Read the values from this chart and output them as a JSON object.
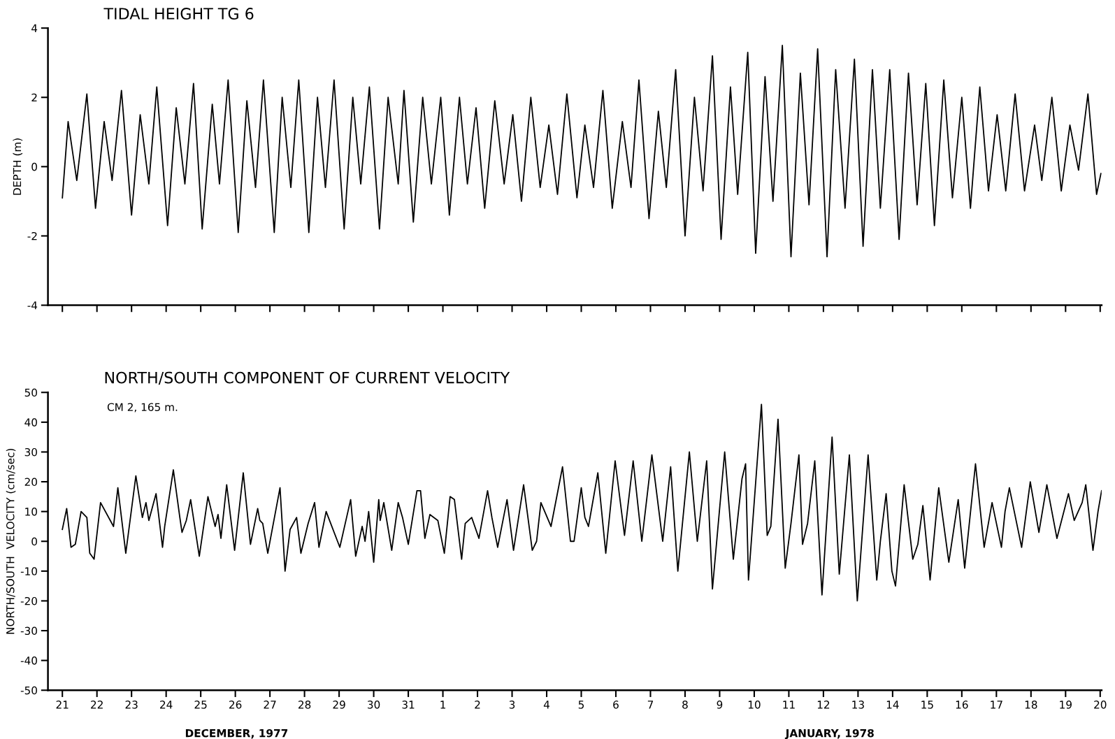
{
  "chart_data": [
    {
      "type": "line",
      "title": "TIDAL HEIGHT TG 6",
      "ylabel": "DEPTH (m)",
      "xlim": [
        "1977-12-20T14:00",
        "1978-01-20T01:00"
      ],
      "ylim": [
        -4,
        4
      ],
      "yticks": [
        -4,
        -2,
        0,
        2,
        4
      ],
      "xticks": [
        {
          "value": "1977-12-21",
          "label": null
        },
        {
          "value": "1977-12-22",
          "label": null
        },
        {
          "value": "1977-12-23",
          "label": null
        },
        {
          "value": "1977-12-24",
          "label": null
        },
        {
          "value": "1977-12-25",
          "label": null
        },
        {
          "value": "1977-12-26",
          "label": null
        },
        {
          "value": "1977-12-27",
          "label": null
        },
        {
          "value": "1977-12-28",
          "label": null
        },
        {
          "value": "1977-12-29",
          "label": null
        },
        {
          "value": "1977-12-30",
          "label": null
        },
        {
          "value": "1977-12-31",
          "label": null
        },
        {
          "value": "1978-01-01",
          "label": null
        },
        {
          "value": "1978-01-02",
          "label": null
        },
        {
          "value": "1978-01-03",
          "label": null
        },
        {
          "value": "1978-01-04",
          "label": null
        },
        {
          "value": "1978-01-05",
          "label": null
        },
        {
          "value": "1978-01-06",
          "label": null
        },
        {
          "value": "1978-01-07",
          "label": null
        },
        {
          "value": "1978-01-08",
          "label": null
        },
        {
          "value": "1978-01-09",
          "label": null
        },
        {
          "value": "1978-01-10",
          "label": null
        },
        {
          "value": "1978-01-11",
          "label": null
        },
        {
          "value": "1978-01-12",
          "label": null
        },
        {
          "value": "1978-01-13",
          "label": null
        },
        {
          "value": "1978-01-14",
          "label": null
        },
        {
          "value": "1978-01-15",
          "label": null
        },
        {
          "value": "1978-01-16",
          "label": null
        },
        {
          "value": "1978-01-17",
          "label": null
        },
        {
          "value": "1978-01-18",
          "label": null
        },
        {
          "value": "1978-01-19",
          "label": null
        },
        {
          "value": "1978-01-20",
          "label": null
        }
      ],
      "tick_labels": "y",
      "grid": false,
      "series": [
        {
          "color": "#000000",
          "x": [
            "1977-12-21T00:00",
            "1977-12-21T04:00",
            "1977-12-21T10:00",
            "1977-12-21T17:00",
            "1977-12-21T23:00",
            "1977-12-22T05:00",
            "1977-12-22T10:30",
            "1977-12-22T17:00",
            "1977-12-23T00:00",
            "1977-12-23T06:00",
            "1977-12-23T12:00",
            "1977-12-23T17:30",
            "1977-12-24T01:00",
            "1977-12-24T07:00",
            "1977-12-24T13:00",
            "1977-12-24T19:00",
            "1977-12-25T01:00",
            "1977-12-25T08:00",
            "1977-12-25T13:00",
            "1977-12-25T19:00",
            "1977-12-26T02:00",
            "1977-12-26T08:00",
            "1977-12-26T14:00",
            "1977-12-26T19:30",
            "1977-12-27T03:00",
            "1977-12-27T08:30",
            "1977-12-27T14:30",
            "1977-12-27T20:00",
            "1977-12-28T03:00",
            "1977-12-28T09:00",
            "1977-12-28T14:30",
            "1977-12-28T20:30",
            "1977-12-29T03:30",
            "1977-12-29T09:30",
            "1977-12-29T15:00",
            "1977-12-29T21:00",
            "1977-12-30T04:00",
            "1977-12-30T10:00",
            "1977-12-30T17:00",
            "1977-12-30T21:00",
            "1977-12-31T03:30",
            "1977-12-31T10:00",
            "1977-12-31T16:00",
            "1977-12-31T22:30",
            "1978-01-01T04:30",
            "1978-01-01T11:30",
            "1978-01-01T17:00",
            "1978-01-01T23:00",
            "1978-01-02T05:00",
            "1978-01-02T12:00",
            "1978-01-02T18:30",
            "1978-01-03T00:30",
            "1978-01-03T06:30",
            "1978-01-03T13:00",
            "1978-01-03T19:30",
            "1978-01-04T01:30",
            "1978-01-04T07:30",
            "1978-01-04T14:00",
            "1978-01-04T21:00",
            "1978-01-05T02:30",
            "1978-01-05T08:30",
            "1978-01-05T15:00",
            "1978-01-05T21:30",
            "1978-01-06T04:30",
            "1978-01-06T10:30",
            "1978-01-06T16:00",
            "1978-01-06T23:00",
            "1978-01-07T05:30",
            "1978-01-07T11:00",
            "1978-01-07T17:30",
            "1978-01-08T00:00",
            "1978-01-08T06:30",
            "1978-01-08T12:30",
            "1978-01-08T19:00",
            "1978-01-09T01:00",
            "1978-01-09T07:30",
            "1978-01-09T12:30",
            "1978-01-09T19:30",
            "1978-01-10T01:00",
            "1978-01-10T07:30",
            "1978-01-10T13:00",
            "1978-01-10T19:30",
            "1978-01-11T01:30",
            "1978-01-11T08:00",
            "1978-01-11T14:00",
            "1978-01-11T20:00",
            "1978-01-12T02:30",
            "1978-01-12T08:30",
            "1978-01-12T15:00",
            "1978-01-12T21:30",
            "1978-01-13T03:30",
            "1978-01-13T10:00",
            "1978-01-13T15:30",
            "1978-01-13T22:00",
            "1978-01-14T04:30",
            "1978-01-14T11:00",
            "1978-01-14T17:00",
            "1978-01-14T23:00",
            "1978-01-15T05:00",
            "1978-01-15T11:30",
            "1978-01-15T17:30",
            "1978-01-16T00:00",
            "1978-01-16T06:00",
            "1978-01-16T12:30",
            "1978-01-16T18:30",
            "1978-01-17T00:30",
            "1978-01-17T06:30",
            "1978-01-17T13:00",
            "1978-01-17T19:30",
            "1978-01-18T02:30",
            "1978-01-18T07:30",
            "1978-01-18T14:30",
            "1978-01-18T21:00",
            "1978-01-19T03:00",
            "1978-01-19T09:00",
            "1978-01-19T15:30",
            "1978-01-19T21:30",
            "1978-01-20T00:30"
          ],
          "values": [
            -0.9,
            1.3,
            -0.4,
            2.1,
            -1.2,
            1.3,
            -0.4,
            2.2,
            -1.4,
            1.5,
            -0.5,
            2.3,
            -1.7,
            1.7,
            -0.5,
            2.4,
            -1.8,
            1.8,
            -0.5,
            2.5,
            -1.9,
            1.9,
            -0.6,
            2.5,
            -1.9,
            2.0,
            -0.6,
            2.5,
            -1.9,
            2.0,
            -0.6,
            2.5,
            -1.8,
            2.0,
            -0.5,
            2.3,
            -1.8,
            2.0,
            -0.5,
            2.2,
            -1.6,
            2.0,
            -0.5,
            2.0,
            -1.4,
            2.0,
            -0.5,
            1.7,
            -1.2,
            1.9,
            -0.5,
            1.5,
            -1.0,
            2.0,
            -0.6,
            1.2,
            -0.8,
            2.1,
            -0.9,
            1.2,
            -0.6,
            2.2,
            -1.2,
            1.3,
            -0.6,
            2.5,
            -1.5,
            1.6,
            -0.6,
            2.8,
            -2.0,
            2.0,
            -0.7,
            3.2,
            -2.1,
            2.3,
            -0.8,
            3.3,
            -2.5,
            2.6,
            -1.0,
            3.5,
            -2.6,
            2.7,
            -1.1,
            3.4,
            -2.6,
            2.8,
            -1.2,
            3.1,
            -2.3,
            2.8,
            -1.2,
            2.8,
            -2.1,
            2.7,
            -1.1,
            2.4,
            -1.7,
            2.5,
            -0.9,
            2.0,
            -1.2,
            2.3,
            -0.7,
            1.5,
            -0.7,
            2.1,
            -0.7,
            1.2,
            -0.4,
            2.0,
            -0.7,
            1.2,
            -0.1,
            2.1,
            -0.8,
            -0.2
          ]
        }
      ]
    },
    {
      "type": "line",
      "title": "NORTH/SOUTH COMPONENT OF CURRENT VELOCITY",
      "subtitle": "CM 2, 165 m.",
      "ylabel": "NORTH/SOUTH  VELOCITY (cm/sec)",
      "annotations": [
        "DECEMBER, 1977",
        "JANUARY, 1978"
      ],
      "xlim": [
        "1977-12-20T14:00",
        "1978-01-20T01:00"
      ],
      "ylim": [
        -50,
        50
      ],
      "yticks": [
        -50,
        -40,
        -30,
        -20,
        -10,
        0,
        10,
        20,
        30,
        40,
        50
      ],
      "xticks": [
        {
          "value": "1977-12-21",
          "label": "21"
        },
        {
          "value": "1977-12-22",
          "label": "22"
        },
        {
          "value": "1977-12-23",
          "label": "23"
        },
        {
          "value": "1977-12-24",
          "label": "24"
        },
        {
          "value": "1977-12-25",
          "label": "25"
        },
        {
          "value": "1977-12-26",
          "label": "26"
        },
        {
          "value": "1977-12-27",
          "label": "27"
        },
        {
          "value": "1977-12-28",
          "label": "28"
        },
        {
          "value": "1977-12-29",
          "label": "29"
        },
        {
          "value": "1977-12-30",
          "label": "30"
        },
        {
          "value": "1977-12-31",
          "label": "31"
        },
        {
          "value": "1978-01-01",
          "label": "1"
        },
        {
          "value": "1978-01-02",
          "label": "2"
        },
        {
          "value": "1978-01-03",
          "label": "3"
        },
        {
          "value": "1978-01-04",
          "label": "4"
        },
        {
          "value": "1978-01-05",
          "label": "5"
        },
        {
          "value": "1978-01-06",
          "label": "6"
        },
        {
          "value": "1978-01-07",
          "label": "7"
        },
        {
          "value": "1978-01-08",
          "label": "8"
        },
        {
          "value": "1978-01-09",
          "label": "9"
        },
        {
          "value": "1978-01-10",
          "label": "10"
        },
        {
          "value": "1978-01-11",
          "label": "11"
        },
        {
          "value": "1978-01-12",
          "label": "12"
        },
        {
          "value": "1978-01-13",
          "label": "13"
        },
        {
          "value": "1978-01-14",
          "label": "14"
        },
        {
          "value": "1978-01-15",
          "label": "15"
        },
        {
          "value": "1978-01-16",
          "label": "16"
        },
        {
          "value": "1978-01-17",
          "label": "17"
        },
        {
          "value": "1978-01-18",
          "label": "18"
        },
        {
          "value": "1978-01-19",
          "label": "19"
        },
        {
          "value": "1978-01-20",
          "label": "20"
        }
      ],
      "grid": false,
      "series": [
        {
          "color": "#000000",
          "x": [
            "1977-12-21T00:00",
            "1977-12-21T03:00",
            "1977-12-21T06:00",
            "1977-12-21T09:00",
            "1977-12-21T13:00",
            "1977-12-21T17:00",
            "1977-12-21T19:00",
            "1977-12-21T22:00",
            "1977-12-22T02:30",
            "1977-12-22T11:30",
            "1977-12-22T14:30",
            "1977-12-22T20:00",
            "1977-12-23T03:00",
            "1977-12-23T07:30",
            "1977-12-23T10:00",
            "1977-12-23T12:00",
            "1977-12-23T17:00",
            "1977-12-23T21:30",
            "1977-12-23T23:00",
            "1977-12-24T05:00",
            "1977-12-24T09:30",
            "1977-12-24T11:00",
            "1977-12-24T14:00",
            "1977-12-24T17:00",
            "1977-12-24T23:00",
            "1977-12-25T05:00",
            "1977-12-25T10:00",
            "1977-12-25T12:00",
            "1977-12-25T14:00",
            "1977-12-25T18:00",
            "1977-12-25T23:30",
            "1977-12-26T05:30",
            "1977-12-26T10:30",
            "1977-12-26T15:30",
            "1977-12-26T17:00",
            "1977-12-26T19:00",
            "1977-12-26T22:30",
            "1977-12-27T07:00",
            "1977-12-27T10:30",
            "1977-12-27T14:00",
            "1977-12-27T18:30",
            "1977-12-27T21:30",
            "1977-12-28T02:30",
            "1977-12-28T07:00",
            "1977-12-28T10:00",
            "1977-12-28T15:00",
            "1977-12-29T00:30",
            "1977-12-29T08:00",
            "1977-12-29T11:30",
            "1977-12-29T16:00",
            "1977-12-29T18:00",
            "1977-12-29T20:30",
            "1977-12-30T00:00",
            "1977-12-30T03:30",
            "1977-12-30T04:30",
            "1977-12-30T07:00",
            "1977-12-30T12:30",
            "1977-12-30T17:00",
            "1977-12-30T20:00",
            "1977-12-31T00:00",
            "1977-12-31T06:00",
            "1977-12-31T08:30",
            "1977-12-31T11:30",
            "1977-12-31T15:00",
            "1977-12-31T20:30",
            "1978-01-01T01:00",
            "1978-01-01T05:00",
            "1978-01-01T08:00",
            "1978-01-01T13:00",
            "1978-01-01T15:30",
            "1978-01-01T20:00",
            "1978-01-02T01:00",
            "1978-01-02T07:00",
            "1978-01-02T10:00",
            "1978-01-02T14:00",
            "1978-01-02T20:30",
            "1978-01-03T01:00",
            "1978-01-03T08:00",
            "1978-01-03T14:00",
            "1978-01-03T17:00",
            "1978-01-03T20:00",
            "1978-01-04T03:00",
            "1978-01-04T11:00",
            "1978-01-04T16:30",
            "1978-01-04T19:00",
            "1978-01-05T00:00",
            "1978-01-05T02:30",
            "1978-01-05T05:00",
            "1978-01-05T11:30",
            "1978-01-05T17:00",
            "1978-01-05T23:30",
            "1978-01-06T06:00",
            "1978-01-06T12:00",
            "1978-01-06T18:00",
            "1978-01-07T01:00",
            "1978-01-07T08:30",
            "1978-01-07T14:00",
            "1978-01-07T19:00",
            "1978-01-08T03:00",
            "1978-01-08T08:30",
            "1978-01-08T15:00",
            "1978-01-08T19:00",
            "1978-01-09T03:30",
            "1978-01-09T09:30",
            "1978-01-09T15:30",
            "1978-01-09T18:00",
            "1978-01-09T20:00",
            "1978-01-10T05:00",
            "1978-01-10T09:00",
            "1978-01-10T11:30",
            "1978-01-10T16:30",
            "1978-01-10T21:30",
            "1978-01-11T01:30",
            "1978-01-11T07:00",
            "1978-01-11T09:30",
            "1978-01-11T13:00",
            "1978-01-11T18:00",
            "1978-01-11T23:00",
            "1978-01-12T06:00",
            "1978-01-12T11:00",
            "1978-01-12T18:00",
            "1978-01-12T23:30",
            "1978-01-13T07:00",
            "1978-01-13T13:00",
            "1978-01-13T15:30",
            "1978-01-13T19:30",
            "1978-01-13T23:30",
            "1978-01-14T02:00",
            "1978-01-14T08:00",
            "1978-01-14T14:00",
            "1978-01-14T17:30",
            "1978-01-14T21:00",
            "1978-01-15T02:00",
            "1978-01-15T08:00",
            "1978-01-15T15:00",
            "1978-01-15T21:30",
            "1978-01-16T02:00",
            "1978-01-16T09:30",
            "1978-01-16T15:30",
            "1978-01-16T21:00",
            "1978-01-17T03:30",
            "1978-01-17T06:00",
            "1978-01-17T09:00",
            "1978-01-17T17:30",
            "1978-01-17T23:30",
            "1978-01-18T05:30",
            "1978-01-18T11:00",
            "1978-01-18T18:00",
            "1978-01-19T02:00",
            "1978-01-19T06:00",
            "1978-01-19T11:30",
            "1978-01-19T14:00",
            "1978-01-19T19:00",
            "1978-01-19T22:30",
            "1978-01-20T01:00"
          ],
          "values": [
            4,
            11,
            -2,
            -1,
            10,
            8,
            -4,
            -6,
            13,
            5,
            18,
            -4,
            22,
            8,
            13,
            7,
            16,
            -2,
            5,
            24,
            8,
            3,
            7,
            14,
            -5,
            15,
            5,
            9,
            1,
            19,
            -3,
            23,
            -1,
            11,
            7,
            6,
            -4,
            18,
            -10,
            4,
            8,
            -4,
            6,
            13,
            -2,
            10,
            -2,
            14,
            -5,
            5,
            0,
            10,
            -7,
            14,
            7,
            13,
            -3,
            13,
            8,
            -1,
            17,
            17,
            1,
            9,
            7,
            -4,
            15,
            14,
            -6,
            6,
            8,
            1,
            17,
            8,
            -2,
            14,
            -3,
            19,
            -3,
            0,
            13,
            5,
            25,
            0,
            0,
            18,
            8,
            5,
            23,
            -4,
            27,
            2,
            27,
            0,
            29,
            0,
            25,
            -10,
            30,
            0,
            27,
            -16,
            30,
            -6,
            21,
            26,
            -13,
            46,
            2,
            5,
            41,
            -9,
            6,
            29,
            -1,
            6,
            27,
            -18,
            35,
            -11,
            29,
            -20,
            29,
            -13,
            0,
            16,
            -10,
            -15,
            19,
            -6,
            -1,
            12,
            -13,
            18,
            -7,
            14,
            -9,
            26,
            -2,
            13,
            -2,
            10,
            18,
            -2,
            20,
            3,
            19,
            1,
            16,
            7,
            13,
            19,
            -3,
            10,
            17
          ]
        }
      ]
    }
  ]
}
